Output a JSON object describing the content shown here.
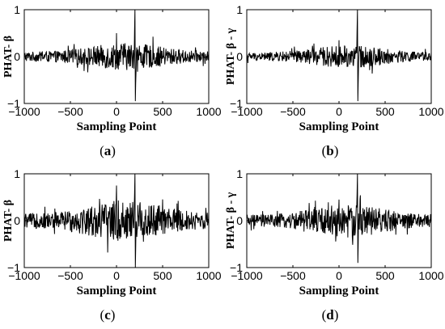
{
  "chart_data": [
    {
      "type": "line",
      "panel_label": "a",
      "xlabel": "Sampling Point",
      "ylabel": "PHAT- β",
      "xlim": [
        -1000,
        1000
      ],
      "ylim": [
        -1,
        1
      ],
      "xticks": [
        -1000,
        -500,
        0,
        500,
        1000
      ],
      "yticks": [
        -1,
        0,
        1
      ],
      "grid": false,
      "series": [
        {
          "peak_at": 200,
          "peak_value": 1.0,
          "min_value": -0.95,
          "noise_amplitude": 0.18,
          "secondary_peak_at": 0,
          "secondary_peak_value": 0.5
        }
      ]
    },
    {
      "type": "line",
      "panel_label": "b",
      "xlabel": "Sampling Point",
      "ylabel": "PHAT- β - γ",
      "xlim": [
        -1000,
        1000
      ],
      "ylim": [
        -1,
        1
      ],
      "xticks": [
        -1000,
        -500,
        0,
        500,
        1000
      ],
      "yticks": [
        -1,
        0,
        1
      ],
      "grid": false,
      "series": [
        {
          "peak_at": 200,
          "peak_value": 1.0,
          "min_value": -0.95,
          "noise_amplitude": 0.15,
          "secondary_peak_at": 0,
          "secondary_peak_value": 0.35
        }
      ]
    },
    {
      "type": "line",
      "panel_label": "c",
      "xlabel": "Sampling Point",
      "ylabel": "PHAT- β",
      "xlim": [
        -1000,
        1000
      ],
      "ylim": [
        -1,
        1
      ],
      "xticks": [
        -1000,
        -500,
        0,
        500,
        1000
      ],
      "yticks": [
        -1,
        0,
        1
      ],
      "grid": false,
      "series": [
        {
          "peak_at": 200,
          "peak_value": 1.0,
          "min_value": -1.0,
          "noise_amplitude": 0.28,
          "secondary_peak_at": 0,
          "secondary_peak_value": 0.75
        }
      ]
    },
    {
      "type": "line",
      "panel_label": "d",
      "xlabel": "Sampling Point",
      "ylabel": "PHAT- β - γ",
      "xlim": [
        -1000,
        1000
      ],
      "ylim": [
        -1,
        1
      ],
      "xticks": [
        -1000,
        -500,
        0,
        500,
        1000
      ],
      "yticks": [
        -1,
        0,
        1
      ],
      "grid": false,
      "series": [
        {
          "peak_at": 200,
          "peak_value": 1.0,
          "min_value": -0.9,
          "noise_amplitude": 0.22,
          "secondary_peak_at": 0,
          "secondary_peak_value": 0.45
        }
      ]
    }
  ],
  "captions": [
    "(a)",
    "(b)",
    "(c)",
    "(d)"
  ]
}
